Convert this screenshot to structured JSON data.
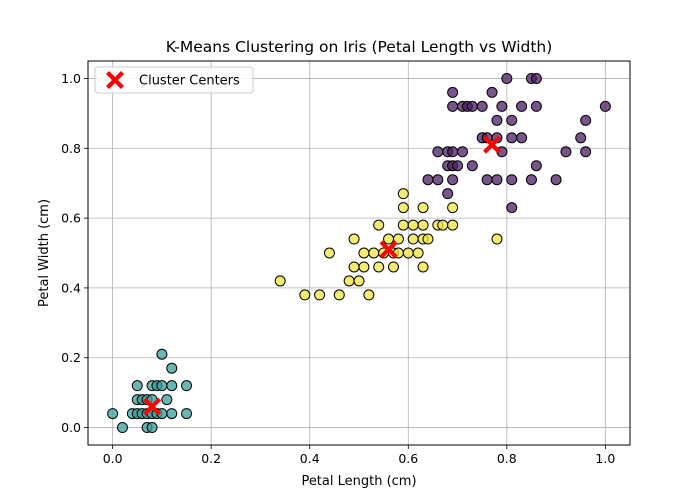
{
  "chart_data": {
    "type": "scatter",
    "title": "K-Means Clustering on Iris (Petal Length vs Width)",
    "xlabel": "Petal Length (cm)",
    "ylabel": "Petal Width (cm)",
    "xlim": [
      -0.05,
      1.05
    ],
    "ylim": [
      -0.05,
      1.05
    ],
    "xticks": [
      0.0,
      0.2,
      0.4,
      0.6,
      0.8,
      1.0
    ],
    "yticks": [
      0.0,
      0.2,
      0.4,
      0.6,
      0.8,
      1.0
    ],
    "xtick_labels": [
      "0.0",
      "0.2",
      "0.4",
      "0.6",
      "0.8",
      "1.0"
    ],
    "ytick_labels": [
      "0.0",
      "0.2",
      "0.4",
      "0.6",
      "0.8",
      "1.0"
    ],
    "grid": true,
    "legend": {
      "position": "top-left",
      "entries": [
        "Cluster Centers"
      ]
    },
    "series": [
      {
        "color": "#3a9c9a",
        "points": [
          [
            0.0,
            0.04
          ],
          [
            0.02,
            0.0
          ],
          [
            0.04,
            0.04
          ],
          [
            0.05,
            0.04
          ],
          [
            0.05,
            0.08
          ],
          [
            0.05,
            0.12
          ],
          [
            0.06,
            0.04
          ],
          [
            0.06,
            0.08
          ],
          [
            0.07,
            0.0
          ],
          [
            0.07,
            0.04
          ],
          [
            0.07,
            0.08
          ],
          [
            0.08,
            0.0
          ],
          [
            0.08,
            0.04
          ],
          [
            0.08,
            0.08
          ],
          [
            0.08,
            0.12
          ],
          [
            0.09,
            0.04
          ],
          [
            0.09,
            0.12
          ],
          [
            0.1,
            0.04
          ],
          [
            0.1,
            0.12
          ],
          [
            0.1,
            0.21
          ],
          [
            0.11,
            0.08
          ],
          [
            0.12,
            0.04
          ],
          [
            0.12,
            0.12
          ],
          [
            0.12,
            0.17
          ],
          [
            0.15,
            0.04
          ],
          [
            0.15,
            0.12
          ]
        ]
      },
      {
        "color": "#f0e442",
        "points": [
          [
            0.34,
            0.42
          ],
          [
            0.39,
            0.38
          ],
          [
            0.42,
            0.38
          ],
          [
            0.44,
            0.5
          ],
          [
            0.46,
            0.38
          ],
          [
            0.48,
            0.42
          ],
          [
            0.49,
            0.46
          ],
          [
            0.49,
            0.54
          ],
          [
            0.5,
            0.42
          ],
          [
            0.51,
            0.46
          ],
          [
            0.51,
            0.5
          ],
          [
            0.52,
            0.38
          ],
          [
            0.53,
            0.5
          ],
          [
            0.54,
            0.46
          ],
          [
            0.54,
            0.58
          ],
          [
            0.55,
            0.5
          ],
          [
            0.56,
            0.54
          ],
          [
            0.57,
            0.46
          ],
          [
            0.57,
            0.5
          ],
          [
            0.58,
            0.5
          ],
          [
            0.58,
            0.54
          ],
          [
            0.59,
            0.58
          ],
          [
            0.59,
            0.63
          ],
          [
            0.59,
            0.67
          ],
          [
            0.6,
            0.5
          ],
          [
            0.61,
            0.54
          ],
          [
            0.61,
            0.58
          ],
          [
            0.62,
            0.5
          ],
          [
            0.63,
            0.54
          ],
          [
            0.63,
            0.58
          ],
          [
            0.63,
            0.46
          ],
          [
            0.63,
            0.63
          ],
          [
            0.64,
            0.54
          ],
          [
            0.66,
            0.58
          ],
          [
            0.67,
            0.58
          ],
          [
            0.69,
            0.58
          ],
          [
            0.69,
            0.63
          ],
          [
            0.78,
            0.54
          ]
        ]
      },
      {
        "color": "#4b1c63",
        "points": [
          [
            0.64,
            0.71
          ],
          [
            0.66,
            0.71
          ],
          [
            0.66,
            0.79
          ],
          [
            0.68,
            0.67
          ],
          [
            0.68,
            0.75
          ],
          [
            0.68,
            0.79
          ],
          [
            0.69,
            0.71
          ],
          [
            0.69,
            0.75
          ],
          [
            0.69,
            0.79
          ],
          [
            0.69,
            0.92
          ],
          [
            0.69,
            0.96
          ],
          [
            0.7,
            0.75
          ],
          [
            0.71,
            0.79
          ],
          [
            0.71,
            0.92
          ],
          [
            0.72,
            0.92
          ],
          [
            0.73,
            0.75
          ],
          [
            0.73,
            0.92
          ],
          [
            0.75,
            0.83
          ],
          [
            0.75,
            0.92
          ],
          [
            0.76,
            0.71
          ],
          [
            0.76,
            0.83
          ],
          [
            0.77,
            0.96
          ],
          [
            0.78,
            0.71
          ],
          [
            0.78,
            0.83
          ],
          [
            0.78,
            0.88
          ],
          [
            0.79,
            0.79
          ],
          [
            0.79,
            0.92
          ],
          [
            0.8,
            1.0
          ],
          [
            0.81,
            0.63
          ],
          [
            0.81,
            0.71
          ],
          [
            0.81,
            0.83
          ],
          [
            0.81,
            0.88
          ],
          [
            0.83,
            0.83
          ],
          [
            0.83,
            0.92
          ],
          [
            0.85,
            0.71
          ],
          [
            0.85,
            1.0
          ],
          [
            0.86,
            0.75
          ],
          [
            0.86,
            0.92
          ],
          [
            0.86,
            1.0
          ],
          [
            0.9,
            0.71
          ],
          [
            0.92,
            0.79
          ],
          [
            0.95,
            0.83
          ],
          [
            0.96,
            0.79
          ],
          [
            0.96,
            0.88
          ],
          [
            1.0,
            0.92
          ]
        ]
      }
    ],
    "centers": {
      "name": "Cluster Centers",
      "color": "#ff0000",
      "marker": "X",
      "points": [
        [
          0.08,
          0.06
        ],
        [
          0.56,
          0.51
        ],
        [
          0.77,
          0.81
        ]
      ]
    }
  }
}
